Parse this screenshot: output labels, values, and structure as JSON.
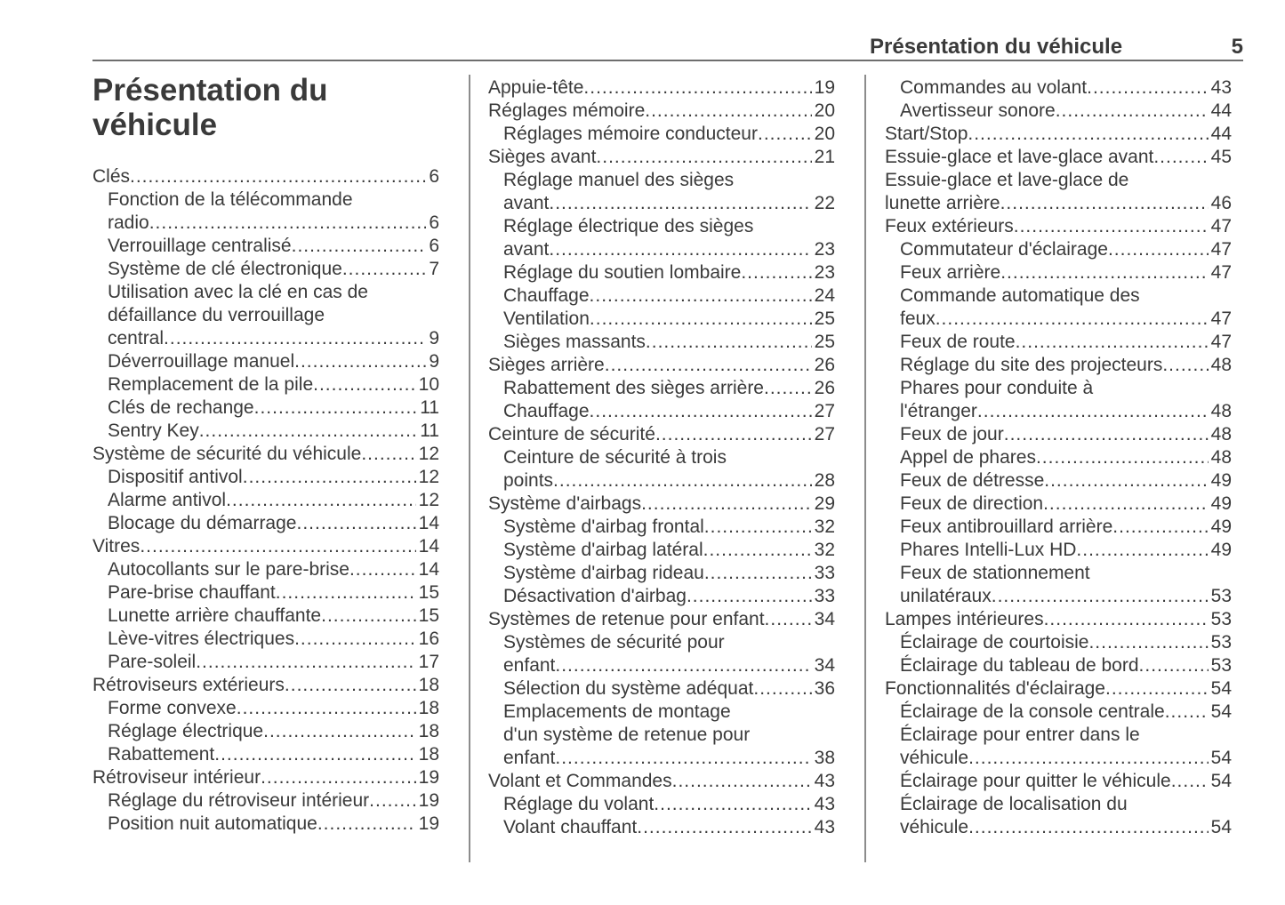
{
  "colors": {
    "text": "#3a3a3a",
    "rule": "#6e6e6e",
    "divider": "#8c8c8c"
  },
  "header": {
    "section_title": "Présentation du véhicule",
    "page_number": "5"
  },
  "chapter_title": "Présentation du véhicule",
  "toc": {
    "columns": [
      {
        "entries": [
          {
            "level": 0,
            "lines": [
              "Clés"
            ],
            "page": "6"
          },
          {
            "level": 1,
            "lines": [
              "Fonction de la télécommande",
              "radio"
            ],
            "page": "6"
          },
          {
            "level": 1,
            "lines": [
              "Verrouillage centralisé"
            ],
            "page": "6"
          },
          {
            "level": 1,
            "lines": [
              "Système de clé électronique"
            ],
            "page": "7"
          },
          {
            "level": 1,
            "lines": [
              "Utilisation avec la clé en cas de",
              "défaillance du verrouillage",
              "central"
            ],
            "page": "9"
          },
          {
            "level": 1,
            "lines": [
              "Déverrouillage manuel"
            ],
            "page": "9"
          },
          {
            "level": 1,
            "lines": [
              "Remplacement de la pile"
            ],
            "page": "10"
          },
          {
            "level": 1,
            "lines": [
              "Clés de rechange"
            ],
            "page": "11"
          },
          {
            "level": 1,
            "lines": [
              "Sentry Key"
            ],
            "page": "11"
          },
          {
            "level": 0,
            "lines": [
              "Système de sécurité du véhicule"
            ],
            "page": "12"
          },
          {
            "level": 1,
            "lines": [
              "Dispositif antivol"
            ],
            "page": "12"
          },
          {
            "level": 1,
            "lines": [
              "Alarme antivol"
            ],
            "page": "12"
          },
          {
            "level": 1,
            "lines": [
              "Blocage du démarrage"
            ],
            "page": "14"
          },
          {
            "level": 0,
            "lines": [
              "Vitres"
            ],
            "page": "14"
          },
          {
            "level": 1,
            "lines": [
              "Autocollants sur le pare-brise"
            ],
            "page": "14"
          },
          {
            "level": 1,
            "lines": [
              "Pare-brise chauffant"
            ],
            "page": "15"
          },
          {
            "level": 1,
            "lines": [
              "Lunette arrière chauffante"
            ],
            "page": "15"
          },
          {
            "level": 1,
            "lines": [
              "Lève-vitres électriques"
            ],
            "page": "16"
          },
          {
            "level": 1,
            "lines": [
              "Pare-soleil"
            ],
            "page": "17"
          },
          {
            "level": 0,
            "lines": [
              "Rétroviseurs extérieurs"
            ],
            "page": "18"
          },
          {
            "level": 1,
            "lines": [
              "Forme convexe"
            ],
            "page": "18"
          },
          {
            "level": 1,
            "lines": [
              "Réglage électrique"
            ],
            "page": "18"
          },
          {
            "level": 1,
            "lines": [
              "Rabattement"
            ],
            "page": "18"
          },
          {
            "level": 0,
            "lines": [
              "Rétroviseur intérieur"
            ],
            "page": "19"
          },
          {
            "level": 1,
            "lines": [
              "Réglage du rétroviseur intérieur"
            ],
            "page": "19"
          },
          {
            "level": 1,
            "lines": [
              "Position nuit automatique"
            ],
            "page": "19"
          }
        ]
      },
      {
        "entries": [
          {
            "level": 0,
            "lines": [
              "Appuie-tête"
            ],
            "page": "19"
          },
          {
            "level": 0,
            "lines": [
              "Réglages mémoire"
            ],
            "page": "20"
          },
          {
            "level": 1,
            "lines": [
              "Réglages mémoire conducteur"
            ],
            "page": "20"
          },
          {
            "level": 0,
            "lines": [
              "Sièges avant"
            ],
            "page": "21"
          },
          {
            "level": 1,
            "lines": [
              "Réglage manuel des sièges",
              "avant"
            ],
            "page": "22"
          },
          {
            "level": 1,
            "lines": [
              "Réglage électrique des sièges",
              "avant"
            ],
            "page": "23"
          },
          {
            "level": 1,
            "lines": [
              "Réglage du soutien lombaire"
            ],
            "page": "23"
          },
          {
            "level": 1,
            "lines": [
              "Chauffage"
            ],
            "page": "24"
          },
          {
            "level": 1,
            "lines": [
              "Ventilation"
            ],
            "page": "25"
          },
          {
            "level": 1,
            "lines": [
              "Sièges massants"
            ],
            "page": "25"
          },
          {
            "level": 0,
            "lines": [
              "Sièges arrière"
            ],
            "page": "26"
          },
          {
            "level": 1,
            "lines": [
              "Rabattement des sièges arrière"
            ],
            "page": "26"
          },
          {
            "level": 1,
            "lines": [
              "Chauffage"
            ],
            "page": "27"
          },
          {
            "level": 0,
            "lines": [
              "Ceinture de sécurité"
            ],
            "page": "27"
          },
          {
            "level": 1,
            "lines": [
              "Ceinture de sécurité à trois",
              "points"
            ],
            "page": "28"
          },
          {
            "level": 0,
            "lines": [
              "Système d'airbags"
            ],
            "page": "29"
          },
          {
            "level": 1,
            "lines": [
              "Système d'airbag frontal"
            ],
            "page": "32"
          },
          {
            "level": 1,
            "lines": [
              "Système d'airbag latéral"
            ],
            "page": "32"
          },
          {
            "level": 1,
            "lines": [
              "Système d'airbag rideau"
            ],
            "page": "33"
          },
          {
            "level": 1,
            "lines": [
              "Désactivation d'airbag"
            ],
            "page": "33"
          },
          {
            "level": 0,
            "lines": [
              "Systèmes de retenue pour enfant"
            ],
            "page": "34"
          },
          {
            "level": 1,
            "lines": [
              "Systèmes de sécurité pour",
              "enfant"
            ],
            "page": "34"
          },
          {
            "level": 1,
            "lines": [
              "Sélection du système adéquat"
            ],
            "page": "36"
          },
          {
            "level": 1,
            "lines": [
              "Emplacements de montage",
              "d'un système de retenue pour",
              "enfant"
            ],
            "page": "38"
          },
          {
            "level": 0,
            "lines": [
              "Volant et Commandes"
            ],
            "page": "43"
          },
          {
            "level": 1,
            "lines": [
              "Réglage du volant"
            ],
            "page": "43"
          },
          {
            "level": 1,
            "lines": [
              "Volant chauffant"
            ],
            "page": "43"
          }
        ]
      },
      {
        "entries": [
          {
            "level": 1,
            "lines": [
              "Commandes au volant"
            ],
            "page": "43"
          },
          {
            "level": 1,
            "lines": [
              "Avertisseur sonore"
            ],
            "page": "44"
          },
          {
            "level": 0,
            "lines": [
              "Start/Stop"
            ],
            "page": "44"
          },
          {
            "level": 0,
            "lines": [
              "Essuie-glace et lave-glace avant"
            ],
            "page": "45"
          },
          {
            "level": 0,
            "lines": [
              "Essuie-glace et lave-glace de",
              "lunette arrière"
            ],
            "page": "46"
          },
          {
            "level": 0,
            "lines": [
              "Feux extérieurs"
            ],
            "page": "47"
          },
          {
            "level": 1,
            "lines": [
              "Commutateur d'éclairage"
            ],
            "page": "47"
          },
          {
            "level": 1,
            "lines": [
              "Feux arrière"
            ],
            "page": "47"
          },
          {
            "level": 1,
            "lines": [
              "Commande automatique des",
              "feux"
            ],
            "page": "47"
          },
          {
            "level": 1,
            "lines": [
              "Feux de route"
            ],
            "page": "47"
          },
          {
            "level": 1,
            "lines": [
              "Réglage du site des projecteurs"
            ],
            "page": "48"
          },
          {
            "level": 1,
            "lines": [
              "Phares pour conduite à",
              "l'étranger"
            ],
            "page": "48"
          },
          {
            "level": 1,
            "lines": [
              "Feux de jour"
            ],
            "page": "48"
          },
          {
            "level": 1,
            "lines": [
              "Appel de phares"
            ],
            "page": "48"
          },
          {
            "level": 1,
            "lines": [
              "Feux de détresse"
            ],
            "page": "49"
          },
          {
            "level": 1,
            "lines": [
              "Feux de direction"
            ],
            "page": "49"
          },
          {
            "level": 1,
            "lines": [
              "Feux antibrouillard arrière"
            ],
            "page": "49"
          },
          {
            "level": 1,
            "lines": [
              "Phares Intelli-Lux HD"
            ],
            "page": "49"
          },
          {
            "level": 1,
            "lines": [
              "Feux de stationnement",
              "unilatéraux"
            ],
            "page": "53"
          },
          {
            "level": 0,
            "lines": [
              "Lampes intérieures"
            ],
            "page": "53"
          },
          {
            "level": 1,
            "lines": [
              "Éclairage de courtoisie"
            ],
            "page": "53"
          },
          {
            "level": 1,
            "lines": [
              "Éclairage du tableau de bord"
            ],
            "page": "53"
          },
          {
            "level": 0,
            "lines": [
              "Fonctionnalités d'éclairage"
            ],
            "page": "54"
          },
          {
            "level": 1,
            "lines": [
              "Éclairage de la console centrale"
            ],
            "page": "54"
          },
          {
            "level": 1,
            "lines": [
              "Éclairage pour entrer dans le",
              "véhicule"
            ],
            "page": "54"
          },
          {
            "level": 1,
            "lines": [
              "Éclairage pour quitter le véhicule"
            ],
            "page": "54"
          },
          {
            "level": 1,
            "lines": [
              "Éclairage de localisation du",
              "véhicule"
            ],
            "page": "54"
          }
        ]
      }
    ]
  }
}
